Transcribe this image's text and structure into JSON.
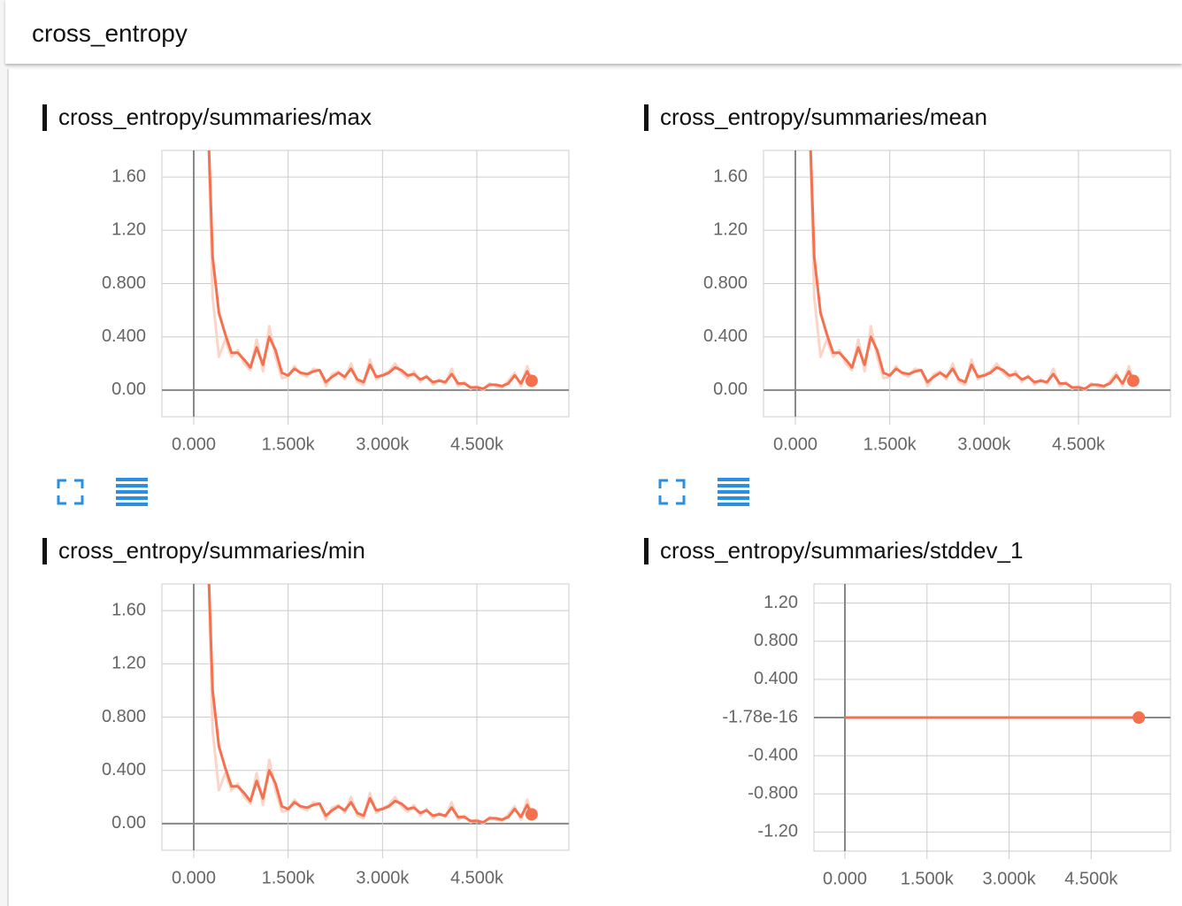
{
  "header": {
    "title": "cross_entropy"
  },
  "chart_data": [
    {
      "type": "line",
      "title": "cross_entropy/summaries/max",
      "x": [
        200,
        300,
        400,
        500,
        600,
        700,
        800,
        900,
        1000,
        1100,
        1200,
        1300,
        1400,
        1500,
        1600,
        1700,
        1800,
        1900,
        2000,
        2100,
        2200,
        2300,
        2400,
        2500,
        2600,
        2700,
        2800,
        2900,
        3000,
        3100,
        3200,
        3300,
        3400,
        3500,
        3600,
        3700,
        3800,
        3900,
        4000,
        4100,
        4200,
        4300,
        4400,
        4500,
        4600,
        4700,
        4800,
        4900,
        5000,
        5100,
        5200,
        5300,
        5370
      ],
      "series": [
        {
          "color": "#fbd5c8",
          "values": [
            2.5,
            0.7,
            0.25,
            0.38,
            0.25,
            0.3,
            0.2,
            0.15,
            0.38,
            0.14,
            0.48,
            0.25,
            0.09,
            0.1,
            0.18,
            0.12,
            0.1,
            0.16,
            0.15,
            0.03,
            0.12,
            0.14,
            0.08,
            0.2,
            0.06,
            0.04,
            0.23,
            0.08,
            0.12,
            0.14,
            0.2,
            0.13,
            0.09,
            0.14,
            0.06,
            0.11,
            0.04,
            0.08,
            0.05,
            0.16,
            0.03,
            0.06,
            0.01,
            0.03,
            0.0,
            0.05,
            0.03,
            0.02,
            0.07,
            0.13,
            0.03,
            0.18,
            0.06
          ]
        },
        {
          "color": "#f4704f",
          "values": [
            2.4,
            1.0,
            0.58,
            0.42,
            0.28,
            0.28,
            0.23,
            0.17,
            0.32,
            0.19,
            0.4,
            0.3,
            0.13,
            0.11,
            0.16,
            0.13,
            0.12,
            0.14,
            0.15,
            0.06,
            0.1,
            0.13,
            0.1,
            0.16,
            0.08,
            0.06,
            0.19,
            0.1,
            0.11,
            0.13,
            0.17,
            0.15,
            0.11,
            0.12,
            0.08,
            0.1,
            0.06,
            0.07,
            0.06,
            0.12,
            0.05,
            0.05,
            0.02,
            0.02,
            0.01,
            0.04,
            0.04,
            0.03,
            0.05,
            0.11,
            0.05,
            0.14,
            0.07
          ]
        }
      ],
      "xlim": [
        -506,
        5962
      ],
      "ylim": [
        -0.2,
        1.8
      ],
      "xticks": [
        {
          "value": 0,
          "label": "0.000"
        },
        {
          "value": 1500,
          "label": "1.500k"
        },
        {
          "value": 3000,
          "label": "3.000k"
        },
        {
          "value": 4500,
          "label": "4.500k"
        }
      ],
      "yticks": [
        {
          "value": 0,
          "label": "0.00"
        },
        {
          "value": 0.4,
          "label": "0.400"
        },
        {
          "value": 0.8,
          "label": "0.800"
        },
        {
          "value": 1.2,
          "label": "1.20"
        },
        {
          "value": 1.6,
          "label": "1.60"
        }
      ],
      "grid": true
    },
    {
      "type": "line",
      "title": "cross_entropy/summaries/mean",
      "x": [
        200,
        300,
        400,
        500,
        600,
        700,
        800,
        900,
        1000,
        1100,
        1200,
        1300,
        1400,
        1500,
        1600,
        1700,
        1800,
        1900,
        2000,
        2100,
        2200,
        2300,
        2400,
        2500,
        2600,
        2700,
        2800,
        2900,
        3000,
        3100,
        3200,
        3300,
        3400,
        3500,
        3600,
        3700,
        3800,
        3900,
        4000,
        4100,
        4200,
        4300,
        4400,
        4500,
        4600,
        4700,
        4800,
        4900,
        5000,
        5100,
        5200,
        5300,
        5370
      ],
      "series": [
        {
          "color": "#fbd5c8",
          "values": [
            2.5,
            0.7,
            0.25,
            0.38,
            0.25,
            0.3,
            0.2,
            0.15,
            0.38,
            0.14,
            0.48,
            0.25,
            0.09,
            0.1,
            0.18,
            0.12,
            0.1,
            0.16,
            0.15,
            0.03,
            0.12,
            0.14,
            0.08,
            0.2,
            0.06,
            0.04,
            0.23,
            0.08,
            0.12,
            0.14,
            0.2,
            0.13,
            0.09,
            0.14,
            0.06,
            0.11,
            0.04,
            0.08,
            0.05,
            0.16,
            0.03,
            0.06,
            0.01,
            0.03,
            0.0,
            0.05,
            0.03,
            0.02,
            0.07,
            0.13,
            0.03,
            0.18,
            0.06
          ]
        },
        {
          "color": "#f4704f",
          "values": [
            2.4,
            1.0,
            0.58,
            0.42,
            0.28,
            0.28,
            0.23,
            0.17,
            0.32,
            0.19,
            0.4,
            0.3,
            0.13,
            0.11,
            0.16,
            0.13,
            0.12,
            0.14,
            0.15,
            0.06,
            0.1,
            0.13,
            0.1,
            0.16,
            0.08,
            0.06,
            0.19,
            0.1,
            0.11,
            0.13,
            0.17,
            0.15,
            0.11,
            0.12,
            0.08,
            0.1,
            0.06,
            0.07,
            0.06,
            0.12,
            0.05,
            0.05,
            0.02,
            0.02,
            0.01,
            0.04,
            0.04,
            0.03,
            0.05,
            0.11,
            0.05,
            0.14,
            0.07
          ]
        }
      ],
      "xlim": [
        -506,
        5962
      ],
      "ylim": [
        -0.2,
        1.8
      ],
      "xticks": [
        {
          "value": 0,
          "label": "0.000"
        },
        {
          "value": 1500,
          "label": "1.500k"
        },
        {
          "value": 3000,
          "label": "3.000k"
        },
        {
          "value": 4500,
          "label": "4.500k"
        }
      ],
      "yticks": [
        {
          "value": 0,
          "label": "0.00"
        },
        {
          "value": 0.4,
          "label": "0.400"
        },
        {
          "value": 0.8,
          "label": "0.800"
        },
        {
          "value": 1.2,
          "label": "1.20"
        },
        {
          "value": 1.6,
          "label": "1.60"
        }
      ],
      "grid": true
    },
    {
      "type": "line",
      "title": "cross_entropy/summaries/min",
      "x": [
        200,
        300,
        400,
        500,
        600,
        700,
        800,
        900,
        1000,
        1100,
        1200,
        1300,
        1400,
        1500,
        1600,
        1700,
        1800,
        1900,
        2000,
        2100,
        2200,
        2300,
        2400,
        2500,
        2600,
        2700,
        2800,
        2900,
        3000,
        3100,
        3200,
        3300,
        3400,
        3500,
        3600,
        3700,
        3800,
        3900,
        4000,
        4100,
        4200,
        4300,
        4400,
        4500,
        4600,
        4700,
        4800,
        4900,
        5000,
        5100,
        5200,
        5300,
        5370
      ],
      "series": [
        {
          "color": "#fbd5c8",
          "values": [
            2.5,
            0.7,
            0.25,
            0.38,
            0.25,
            0.3,
            0.2,
            0.15,
            0.38,
            0.14,
            0.48,
            0.25,
            0.09,
            0.1,
            0.18,
            0.12,
            0.1,
            0.16,
            0.15,
            0.03,
            0.12,
            0.14,
            0.08,
            0.2,
            0.06,
            0.04,
            0.23,
            0.08,
            0.12,
            0.14,
            0.2,
            0.13,
            0.09,
            0.14,
            0.06,
            0.11,
            0.04,
            0.08,
            0.05,
            0.16,
            0.03,
            0.06,
            0.01,
            0.03,
            0.0,
            0.05,
            0.03,
            0.02,
            0.07,
            0.13,
            0.03,
            0.18,
            0.06
          ]
        },
        {
          "color": "#f4704f",
          "values": [
            2.4,
            1.0,
            0.58,
            0.42,
            0.28,
            0.28,
            0.23,
            0.17,
            0.32,
            0.19,
            0.4,
            0.3,
            0.13,
            0.11,
            0.16,
            0.13,
            0.12,
            0.14,
            0.15,
            0.06,
            0.1,
            0.13,
            0.1,
            0.16,
            0.08,
            0.06,
            0.19,
            0.1,
            0.11,
            0.13,
            0.17,
            0.15,
            0.11,
            0.12,
            0.08,
            0.1,
            0.06,
            0.07,
            0.06,
            0.12,
            0.05,
            0.05,
            0.02,
            0.02,
            0.01,
            0.04,
            0.04,
            0.03,
            0.05,
            0.11,
            0.05,
            0.14,
            0.07
          ]
        }
      ],
      "xlim": [
        -506,
        5962
      ],
      "ylim": [
        -0.2,
        1.8
      ],
      "xticks": [
        {
          "value": 0,
          "label": "0.000"
        },
        {
          "value": 1500,
          "label": "1.500k"
        },
        {
          "value": 3000,
          "label": "3.000k"
        },
        {
          "value": 4500,
          "label": "4.500k"
        }
      ],
      "yticks": [
        {
          "value": 0,
          "label": "0.00"
        },
        {
          "value": 0.4,
          "label": "0.400"
        },
        {
          "value": 0.8,
          "label": "0.800"
        },
        {
          "value": 1.2,
          "label": "1.20"
        },
        {
          "value": 1.6,
          "label": "1.60"
        }
      ],
      "grid": true
    },
    {
      "type": "line",
      "title": "cross_entropy/summaries/stddev_1",
      "x": [
        0,
        5370
      ],
      "series": [
        {
          "color": "#f4704f",
          "values": [
            -1.78e-16,
            -1.78e-16
          ]
        }
      ],
      "xlim": [
        -566,
        5950
      ],
      "ylim": [
        -1.4,
        1.4
      ],
      "xticks": [
        {
          "value": 0,
          "label": "0.000"
        },
        {
          "value": 1500,
          "label": "1.500k"
        },
        {
          "value": 3000,
          "label": "3.000k"
        },
        {
          "value": 4500,
          "label": "4.500k"
        }
      ],
      "yticks": [
        {
          "value": 1.2,
          "label": "1.20"
        },
        {
          "value": 0.8,
          "label": "0.800"
        },
        {
          "value": 0.4,
          "label": "0.400"
        },
        {
          "value": -1.78e-16,
          "label": "-1.78e-16"
        },
        {
          "value": -0.4,
          "label": "-0.400"
        },
        {
          "value": -0.8,
          "label": "-0.800"
        },
        {
          "value": -1.2,
          "label": "-1.20"
        }
      ],
      "grid": true
    }
  ]
}
